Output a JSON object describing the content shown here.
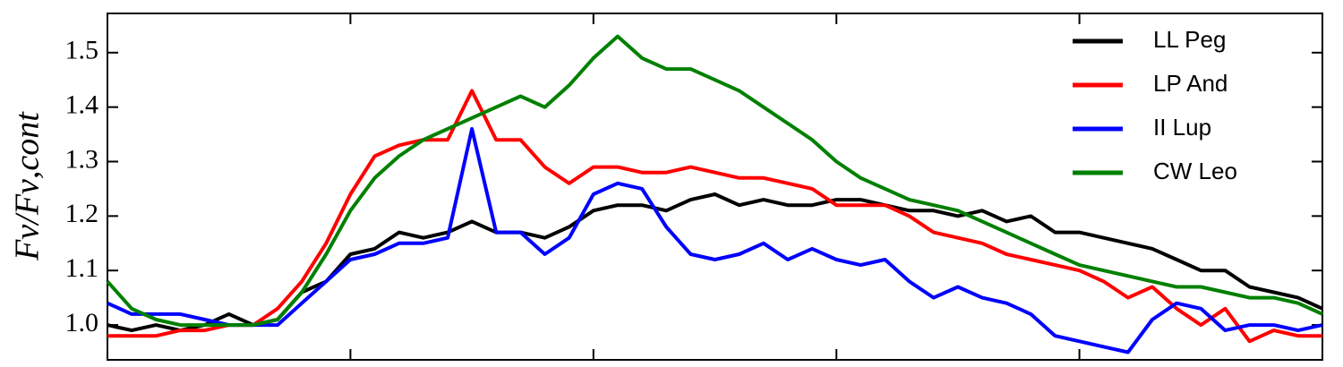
{
  "chart_data": {
    "type": "line",
    "y_label": "Fν/Fν,cont",
    "x": [
      0,
      0.1,
      0.2,
      0.3,
      0.4,
      0.5,
      0.6,
      0.7,
      0.8,
      0.9,
      1,
      1.1,
      1.2,
      1.3,
      1.4,
      1.5,
      1.6,
      1.7,
      1.8,
      1.9,
      2,
      2.1,
      2.2,
      2.3,
      2.4,
      2.5,
      2.6,
      2.7,
      2.8,
      2.9,
      3,
      3.1,
      3.2,
      3.3,
      3.4,
      3.5,
      3.6,
      3.7,
      3.8,
      3.9,
      4,
      4.1,
      4.2,
      4.3,
      4.4,
      4.5,
      4.6,
      4.7,
      4.8,
      4.9,
      5
    ],
    "series": [
      {
        "name": "LL Peg",
        "color": "#000000",
        "values": [
          1.0,
          0.99,
          1.0,
          0.99,
          1.0,
          1.02,
          1.0,
          1.01,
          1.06,
          1.08,
          1.13,
          1.14,
          1.17,
          1.16,
          1.17,
          1.19,
          1.17,
          1.17,
          1.16,
          1.18,
          1.21,
          1.22,
          1.22,
          1.21,
          1.23,
          1.24,
          1.22,
          1.23,
          1.22,
          1.22,
          1.23,
          1.23,
          1.22,
          1.21,
          1.21,
          1.2,
          1.21,
          1.19,
          1.2,
          1.17,
          1.17,
          1.16,
          1.15,
          1.14,
          1.12,
          1.1,
          1.1,
          1.07,
          1.06,
          1.05,
          1.03
        ]
      },
      {
        "name": "LP And",
        "color": "#ff0000",
        "values": [
          0.98,
          0.98,
          0.98,
          0.99,
          0.99,
          1.0,
          1.0,
          1.03,
          1.08,
          1.15,
          1.24,
          1.31,
          1.33,
          1.34,
          1.34,
          1.43,
          1.34,
          1.34,
          1.29,
          1.26,
          1.29,
          1.29,
          1.28,
          1.28,
          1.29,
          1.28,
          1.27,
          1.27,
          1.26,
          1.25,
          1.22,
          1.22,
          1.22,
          1.2,
          1.17,
          1.16,
          1.15,
          1.13,
          1.12,
          1.11,
          1.1,
          1.08,
          1.05,
          1.07,
          1.03,
          1.0,
          1.03,
          0.97,
          0.99,
          0.98,
          0.98
        ]
      },
      {
        "name": "II Lup",
        "color": "#0000ff",
        "values": [
          1.04,
          1.02,
          1.02,
          1.02,
          1.01,
          1.0,
          1.0,
          1.0,
          1.04,
          1.08,
          1.12,
          1.13,
          1.15,
          1.15,
          1.16,
          1.36,
          1.17,
          1.17,
          1.13,
          1.16,
          1.24,
          1.26,
          1.25,
          1.18,
          1.13,
          1.12,
          1.13,
          1.15,
          1.12,
          1.14,
          1.12,
          1.11,
          1.12,
          1.08,
          1.05,
          1.07,
          1.05,
          1.04,
          1.02,
          0.98,
          0.97,
          0.96,
          0.95,
          1.01,
          1.04,
          1.03,
          0.99,
          1.0,
          1.0,
          0.99,
          1.0
        ]
      },
      {
        "name": "CW Leo",
        "color": "#008000",
        "values": [
          1.08,
          1.03,
          1.01,
          1.0,
          1.0,
          1.0,
          1.0,
          1.01,
          1.06,
          1.13,
          1.21,
          1.27,
          1.31,
          1.34,
          1.36,
          1.38,
          1.4,
          1.42,
          1.4,
          1.44,
          1.49,
          1.53,
          1.49,
          1.47,
          1.47,
          1.45,
          1.43,
          1.4,
          1.37,
          1.34,
          1.3,
          1.27,
          1.25,
          1.23,
          1.22,
          1.21,
          1.19,
          1.17,
          1.15,
          1.13,
          1.11,
          1.1,
          1.09,
          1.08,
          1.07,
          1.07,
          1.06,
          1.05,
          1.05,
          1.04,
          1.02
        ]
      }
    ],
    "xlim": [
      0,
      5
    ],
    "xticks": [
      1,
      2,
      3,
      4
    ],
    "ylim": [
      0.936,
      1.572
    ],
    "yticks": [
      {
        "value": 1.0,
        "label": "1.0"
      },
      1.1,
      1.2,
      1.3,
      1.4,
      1.5
    ],
    "legend": "upper right"
  }
}
